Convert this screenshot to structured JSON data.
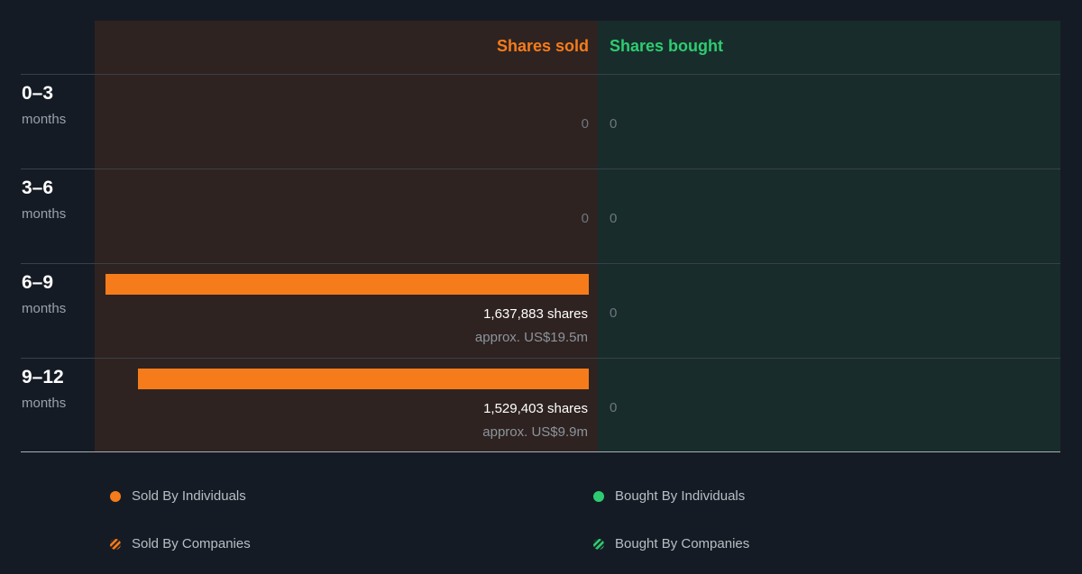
{
  "header": {
    "sold_label": "Shares sold",
    "bought_label": "Shares bought"
  },
  "colors": {
    "sold": "#f67c1b",
    "bought": "#2ecc71",
    "sold_bg": "#2e2321",
    "bought_bg": "#182d2b"
  },
  "rows": [
    {
      "range": "0–3",
      "unit": "months",
      "sold_zero": "0",
      "bought": "0"
    },
    {
      "range": "3–6",
      "unit": "months",
      "sold_zero": "0",
      "bought": "0"
    },
    {
      "range": "6–9",
      "unit": "months",
      "sold_shares": "1,637,883 shares",
      "sold_value": "approx. US$19.5m",
      "bought": "0"
    },
    {
      "range": "9–12",
      "unit": "months",
      "sold_shares": "1,529,403 shares",
      "sold_value": "approx. US$9.9m",
      "bought": "0"
    }
  ],
  "legend": {
    "sold_individuals": "Sold By Individuals",
    "bought_individuals": "Bought By Individuals",
    "sold_companies": "Sold By Companies",
    "bought_companies": "Bought By Companies"
  },
  "chart_data": {
    "type": "bar",
    "categories": [
      "0–3 months",
      "3–6 months",
      "6–9 months",
      "9–12 months"
    ],
    "series": [
      {
        "name": "Shares sold",
        "values": [
          0,
          0,
          1637883,
          1529403
        ]
      },
      {
        "name": "Shares bought",
        "values": [
          0,
          0,
          0,
          0
        ]
      }
    ]
  }
}
